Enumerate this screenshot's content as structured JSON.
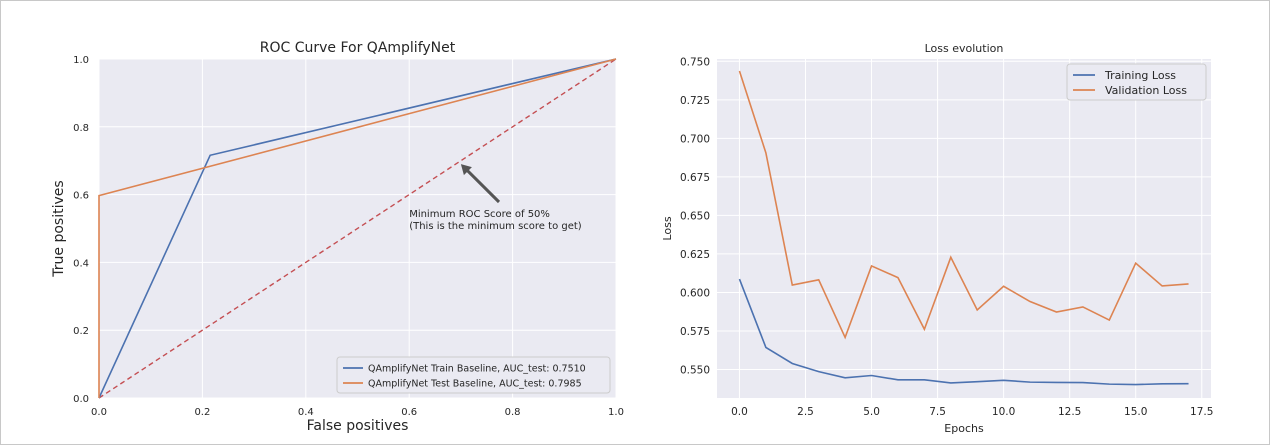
{
  "colors": {
    "panel": "#eaeaf2",
    "grid": "#ffffff",
    "blue": "#4c72b0",
    "orange": "#dd8452",
    "red": "#c44e52",
    "arrow": "#555555",
    "text": "#262626"
  },
  "chart_data": [
    {
      "type": "line",
      "title": "ROC Curve For QAmplifyNet",
      "xlabel": "False positives",
      "ylabel": "True positives",
      "xlim": [
        0,
        1
      ],
      "ylim": [
        0,
        1
      ],
      "grid": true,
      "legend_position": "bottom-right",
      "xticks": [
        "0.0",
        "0.2",
        "0.4",
        "0.6",
        "0.8",
        "1.0"
      ],
      "yticks": [
        "0.0",
        "0.2",
        "0.4",
        "0.6",
        "0.8",
        "1.0"
      ],
      "series": [
        {
          "name": "QAmplifyNet Train Baseline, AUC_test: 0.7510",
          "color": "#4c72b0",
          "x": [
            0,
            0.215,
            1
          ],
          "y": [
            0,
            0.716,
            1
          ]
        },
        {
          "name": "QAmplifyNet Test Baseline, AUC_test: 0.7985",
          "color": "#dd8452",
          "x": [
            0,
            0,
            1
          ],
          "y": [
            0,
            0.597,
            1
          ]
        }
      ],
      "reference_line": {
        "x": [
          0,
          1
        ],
        "y": [
          0,
          1
        ],
        "style": "dashed",
        "color": "#c44e52"
      },
      "annotation": {
        "lines": [
          "Minimum ROC Score of 50%",
          "(This is the minimum score to get)"
        ],
        "text_at": [
          0.6,
          0.54
        ],
        "arrow_to": [
          0.7,
          0.69
        ]
      }
    },
    {
      "type": "line",
      "title": "Loss evolution",
      "xlabel": "Epochs",
      "ylabel": "Loss",
      "xlim": [
        -0.85,
        17.85
      ],
      "ylim": [
        0.5315,
        0.7515
      ],
      "grid": true,
      "legend_position": "top-right",
      "xticks": [
        "0.0",
        "2.5",
        "5.0",
        "7.5",
        "10.0",
        "12.5",
        "15.0",
        "17.5"
      ],
      "yticks": [
        "0.550",
        "0.575",
        "0.600",
        "0.625",
        "0.650",
        "0.675",
        "0.700",
        "0.725",
        "0.750"
      ],
      "x": [
        0,
        1,
        2,
        3,
        4,
        5,
        6,
        7,
        8,
        9,
        10,
        11,
        12,
        13,
        14,
        15,
        16,
        17
      ],
      "series": [
        {
          "name": "Training Loss",
          "color": "#4c72b0",
          "values": [
            0.6087,
            0.5643,
            0.5539,
            0.5486,
            0.5446,
            0.5461,
            0.5433,
            0.5433,
            0.5413,
            0.5421,
            0.543,
            0.5418,
            0.5416,
            0.5415,
            0.5405,
            0.5402,
            0.5407,
            0.5408
          ]
        },
        {
          "name": "Validation Loss",
          "color": "#dd8452",
          "values": [
            0.7437,
            0.6906,
            0.6048,
            0.6082,
            0.5708,
            0.6172,
            0.6096,
            0.5761,
            0.6228,
            0.5886,
            0.604,
            0.5941,
            0.5873,
            0.5906,
            0.5821,
            0.619,
            0.6042,
            0.6055
          ]
        }
      ]
    }
  ]
}
